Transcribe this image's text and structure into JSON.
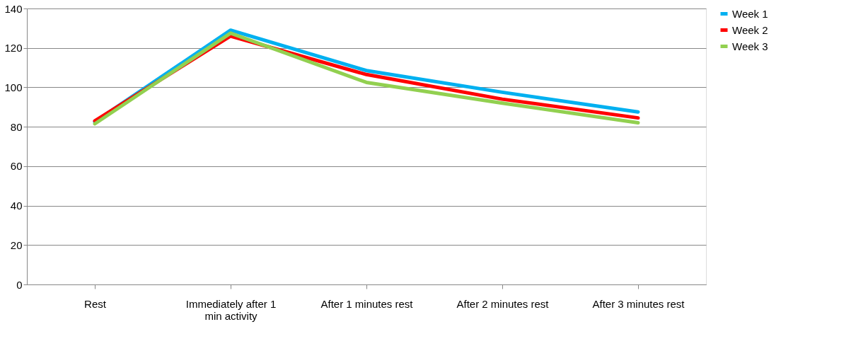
{
  "chart_data": {
    "type": "line",
    "categories": [
      "Rest",
      "Immediately after 1 min activity",
      "After 1 minutes rest",
      "After 2 minutes rest",
      "After 3 minutes rest"
    ],
    "series": [
      {
        "name": "Week 1",
        "color": "#00b0f0",
        "values": [
          82.5,
          129,
          108.5,
          97.5,
          87.5
        ]
      },
      {
        "name": "Week 2",
        "color": "#ff0000",
        "values": [
          83,
          126,
          106.5,
          94,
          84.5
        ]
      },
      {
        "name": "Week 3",
        "color": "#92d050",
        "values": [
          81.5,
          127.5,
          102.5,
          92,
          82
        ]
      }
    ],
    "ylim": [
      0,
      140
    ],
    "yticks": [
      0,
      20,
      40,
      60,
      80,
      100,
      120,
      140
    ],
    "grid": "y",
    "legend": "right",
    "marker": "none",
    "line_style": "solid"
  }
}
